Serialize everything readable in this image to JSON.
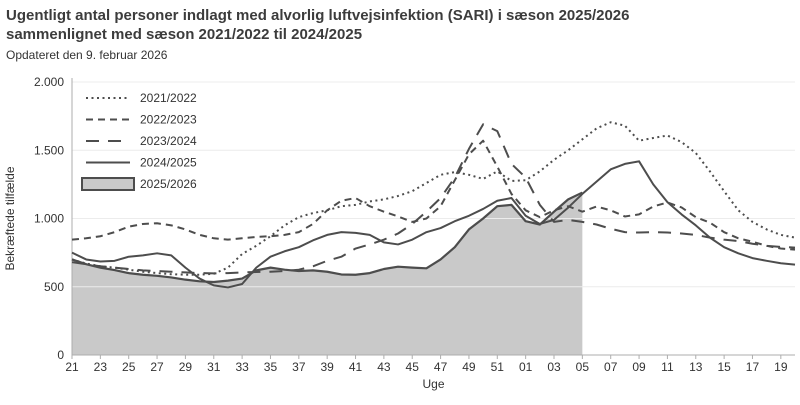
{
  "header": {
    "title_line1": "Ugentligt antal personer indlagt med alvorlig luftvejsinfektion (SARI) i sæson 2025/2026",
    "title_line2": "sammenlignet med sæson 2021/2022 til 2024/2025",
    "updated": "Opdateret den 9. februar 2026"
  },
  "chart_data": {
    "type": "line",
    "title": "Ugentligt antal personer indlagt med alvorlig luftvejsinfektion (SARI) i sæson 2025/2026 sammenlignet med sæson 2021/2022 til 2024/2025",
    "subtitle": "Opdateret den 9. februar 2026",
    "xlabel": "Uge",
    "ylabel": "Bekræftede tilfælde",
    "ylim": [
      0,
      2000
    ],
    "yticks": [
      0,
      500,
      1000,
      1500,
      2000
    ],
    "ytick_labels": [
      "0",
      "500",
      "1.000",
      "1.500",
      "2.000"
    ],
    "x_categories": [
      "21",
      "22",
      "23",
      "24",
      "25",
      "26",
      "27",
      "28",
      "29",
      "30",
      "31",
      "32",
      "33",
      "34",
      "35",
      "36",
      "37",
      "38",
      "39",
      "40",
      "41",
      "42",
      "43",
      "44",
      "45",
      "46",
      "47",
      "48",
      "49",
      "50",
      "51",
      "52",
      "01",
      "02",
      "03",
      "04",
      "05",
      "06",
      "07",
      "08",
      "09",
      "10",
      "11",
      "12",
      "13",
      "14",
      "15",
      "16",
      "17",
      "18",
      "19",
      "20"
    ],
    "xtick_every": 2,
    "grid": true,
    "legend_position": "top-left",
    "colors": {
      "line": "#4d4d4d",
      "area_fill": "#c9c9c9",
      "grid": "#ececec",
      "axis": "#adadad",
      "text": "#333333"
    },
    "series": [
      {
        "name": "2021/2022",
        "style": "dotted",
        "values": [
          700,
          670,
          650,
          640,
          625,
          610,
          600,
          592,
          588,
          588,
          595,
          640,
          740,
          800,
          870,
          950,
          1010,
          1040,
          1060,
          1090,
          1100,
          1125,
          1140,
          1165,
          1200,
          1260,
          1320,
          1340,
          1320,
          1290,
          1345,
          1275,
          1280,
          1345,
          1430,
          1500,
          1580,
          1660,
          1705,
          1680,
          1570,
          1590,
          1608,
          1560,
          1480,
          1345,
          1200,
          1060,
          975,
          920,
          880,
          860
        ]
      },
      {
        "name": "2022/2023",
        "style": "dashed",
        "values": [
          845,
          855,
          870,
          900,
          940,
          960,
          965,
          950,
          920,
          880,
          855,
          845,
          855,
          865,
          870,
          880,
          900,
          960,
          1060,
          1130,
          1150,
          1090,
          1050,
          1015,
          975,
          1000,
          1090,
          1280,
          1470,
          1570,
          1380,
          1180,
          1060,
          1010,
          1060,
          1090,
          1050,
          1088,
          1060,
          1015,
          1030,
          1088,
          1117,
          1081,
          1010,
          970,
          900,
          855,
          830,
          800,
          780,
          772
        ]
      },
      {
        "name": "2023/2024",
        "style": "longdash",
        "values": [
          680,
          665,
          650,
          640,
          630,
          620,
          615,
          610,
          605,
          600,
          598,
          600,
          605,
          608,
          610,
          615,
          625,
          650,
          690,
          720,
          780,
          810,
          845,
          890,
          960,
          1050,
          1150,
          1300,
          1510,
          1690,
          1640,
          1400,
          1300,
          1100,
          975,
          990,
          975,
          956,
          925,
          900,
          897,
          900,
          897,
          890,
          880,
          860,
          845,
          835,
          815,
          800,
          792,
          787
        ]
      },
      {
        "name": "2024/2025",
        "style": "solid",
        "values": [
          750,
          700,
          685,
          690,
          720,
          730,
          745,
          730,
          640,
          560,
          510,
          495,
          520,
          640,
          720,
          760,
          790,
          840,
          880,
          900,
          895,
          880,
          825,
          810,
          845,
          900,
          930,
          980,
          1020,
          1070,
          1130,
          1150,
          1020,
          960,
          990,
          1080,
          1180,
          1270,
          1360,
          1400,
          1419,
          1250,
          1120,
          1030,
          950,
          860,
          790,
          745,
          710,
          690,
          672,
          662
        ]
      },
      {
        "name": "2025/2026",
        "style": "area",
        "values": [
          700,
          665,
          640,
          622,
          600,
          588,
          580,
          568,
          552,
          540,
          535,
          545,
          560,
          620,
          640,
          625,
          615,
          620,
          610,
          590,
          588,
          600,
          630,
          647,
          640,
          635,
          700,
          790,
          920,
          1000,
          1090,
          1100,
          980,
          956,
          1050,
          1140,
          1190,
          null,
          null,
          null,
          null,
          null,
          null,
          null,
          null,
          null,
          null,
          null,
          null,
          null,
          null,
          null
        ]
      }
    ]
  }
}
